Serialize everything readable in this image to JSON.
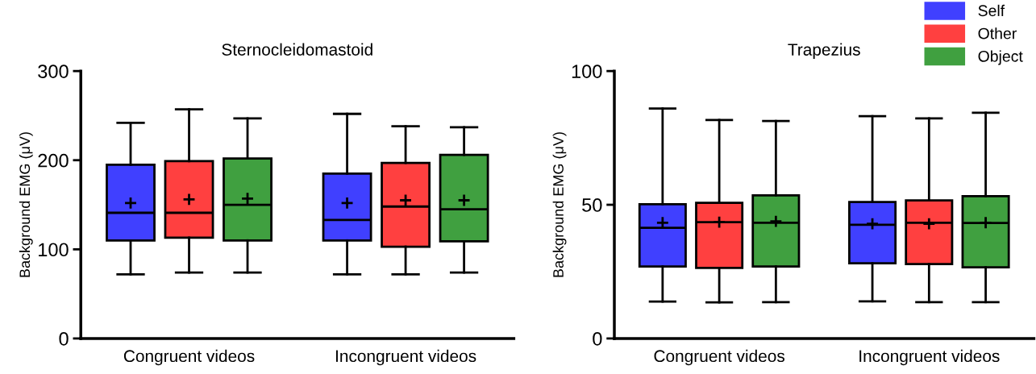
{
  "chart_data": [
    {
      "type": "box",
      "title": "Sternocleidomastoid",
      "ylabel": "Background EMG (μV)",
      "categories": [
        "Congruent videos",
        "Incongruent videos"
      ],
      "ylim": [
        0,
        300
      ],
      "yticks": [
        0,
        100,
        200,
        300
      ],
      "grid": false,
      "legend": false,
      "marker": "cross",
      "series": [
        {
          "color": "#4040ff",
          "boxes": [
            {
              "low": 72,
              "q1": 110,
              "median": 141,
              "q3": 195,
              "high": 242,
              "mean": 152
            },
            {
              "low": 72,
              "q1": 110,
              "median": 133,
              "q3": 185,
              "high": 252,
              "mean": 152
            }
          ]
        },
        {
          "color": "#ff4040",
          "boxes": [
            {
              "low": 74,
              "q1": 113,
              "median": 141,
              "q3": 199,
              "high": 257,
              "mean": 156
            },
            {
              "low": 72,
              "q1": 103,
              "median": 148,
              "q3": 197,
              "high": 238,
              "mean": 155
            }
          ]
        },
        {
          "color": "#40a040",
          "boxes": [
            {
              "low": 74,
              "q1": 110,
              "median": 150,
              "q3": 202,
              "high": 247,
              "mean": 157
            },
            {
              "low": 74,
              "q1": 109,
              "median": 145,
              "q3": 206,
              "high": 237,
              "mean": 155
            }
          ]
        }
      ]
    },
    {
      "type": "box",
      "title": "Trapezius",
      "ylabel": "Background EMG (μV)",
      "categories": [
        "Congruent videos",
        "Incongruent videos"
      ],
      "ylim": [
        0,
        100
      ],
      "yticks": [
        0,
        50,
        100
      ],
      "grid": false,
      "legend": "top right",
      "marker": "cross",
      "series": [
        {
          "name": "Self",
          "color": "#4040ff",
          "boxes": [
            {
              "low": 13.8,
              "q1": 26.9,
              "median": 41.4,
              "q3": 50.2,
              "high": 86,
              "mean": 43.3
            },
            {
              "low": 13.9,
              "q1": 28.1,
              "median": 42.5,
              "q3": 51,
              "high": 83.1,
              "mean": 42.9
            }
          ]
        },
        {
          "name": "Other",
          "color": "#ff4040",
          "boxes": [
            {
              "low": 13.5,
              "q1": 26.4,
              "median": 43.5,
              "q3": 50.7,
              "high": 81.7,
              "mean": 43.5
            },
            {
              "low": 13.6,
              "q1": 27.8,
              "median": 43.3,
              "q3": 51.6,
              "high": 82.3,
              "mean": 42.9
            }
          ]
        },
        {
          "name": "Object",
          "color": "#40a040",
          "boxes": [
            {
              "low": 13.6,
              "q1": 26.9,
              "median": 43.3,
              "q3": 53.5,
              "high": 81.3,
              "mean": 43.8
            },
            {
              "low": 13.6,
              "q1": 26.6,
              "median": 43.2,
              "q3": 53.2,
              "high": 84.4,
              "mean": 43.3
            }
          ]
        }
      ]
    }
  ]
}
